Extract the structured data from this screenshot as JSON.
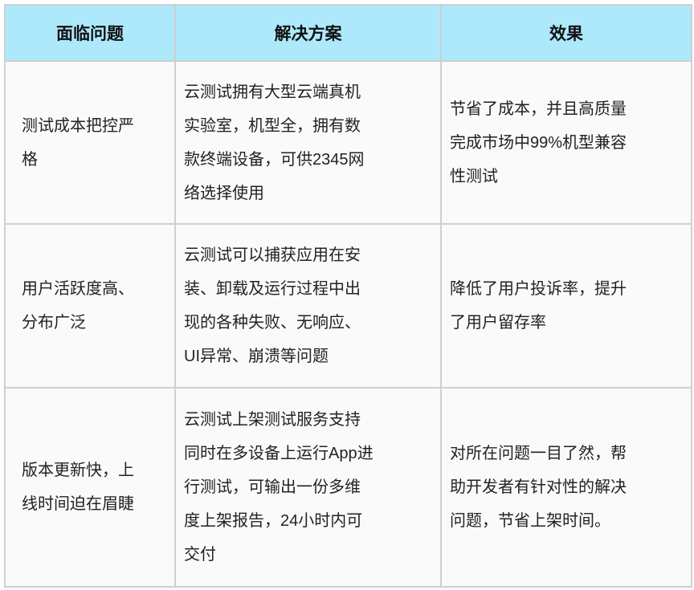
{
  "table": {
    "headers": [
      "面临问题",
      "解决方案",
      "效果"
    ],
    "rows": [
      {
        "problem": "测试成本把控严\n格",
        "solution": "云测试拥有大型云端真机\n实验室，机型全，拥有数\n款终端设备，可供2345网\n络选择使用",
        "effect": "节省了成本，并且高质量\n完成市场中99%机型兼容\n性测试"
      },
      {
        "problem": "用户活跃度高、\n分布广泛",
        "solution": "云测试可以捕获应用在安\n装、卸载及运行过程中出\n现的各种失败、无响应、\nUI异常、崩溃等问题",
        "effect": "降低了用户投诉率，提升\n了用户留存率"
      },
      {
        "problem": "版本更新快，上\n线时间迫在眉睫",
        "solution": "云测试上架测试服务支持\n同时在多设备上运行App进\n行测试，可输出一份多维\n度上架报告，24小时内可\n交付",
        "effect": "对所在问题一目了然，帮\n助开发者有针对性的解决\n问题，节省上架时间。"
      }
    ]
  },
  "colors": {
    "header_bg": "#aee9fb",
    "cell_bg": "#fafafa",
    "border": "#cfcfcf"
  }
}
